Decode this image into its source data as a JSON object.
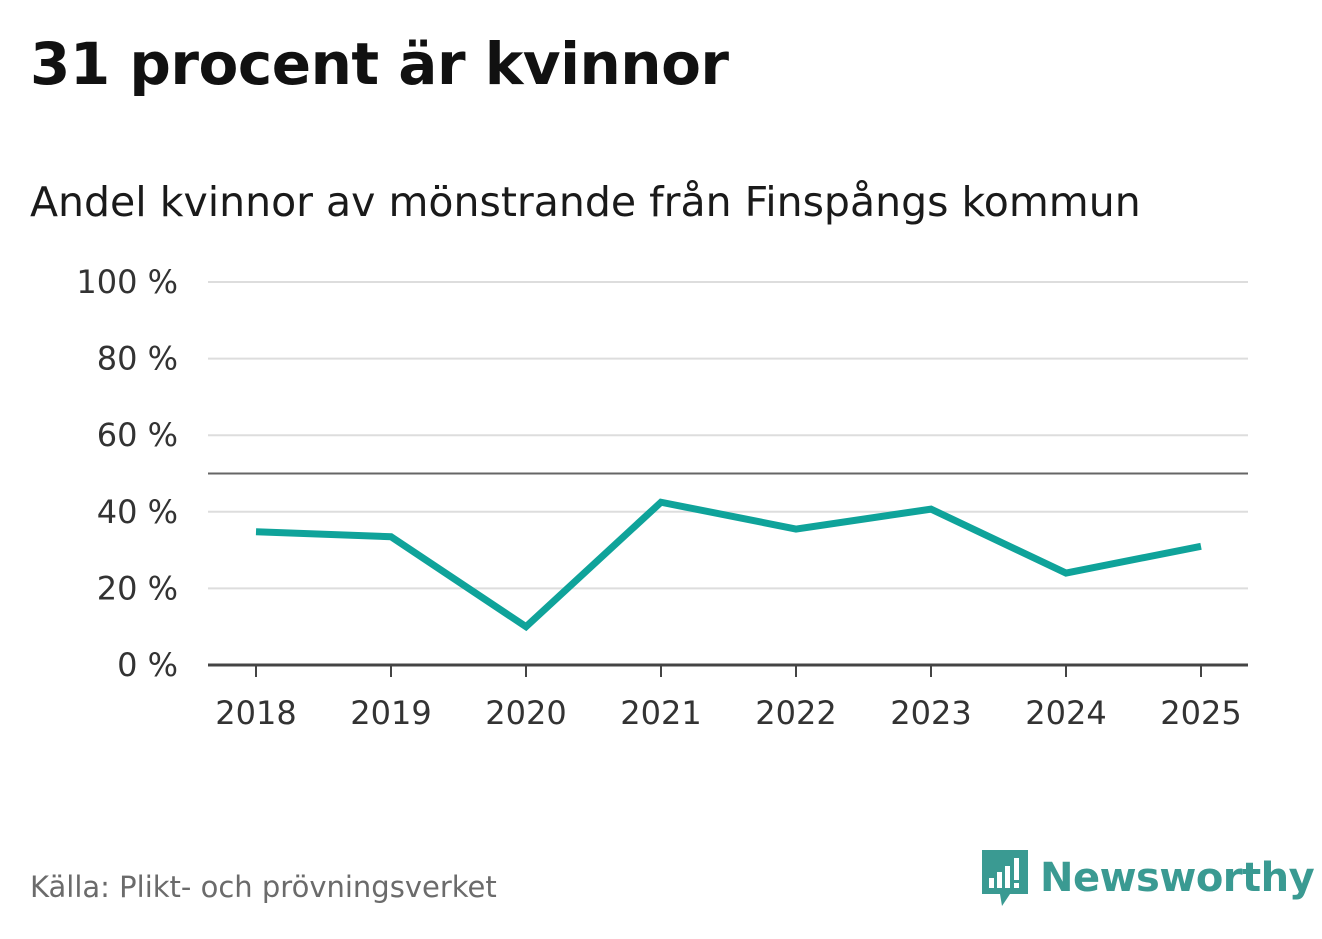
{
  "colors": {
    "line": "#0fa39a",
    "brand": "#3a9a92",
    "grid": "#dddddd",
    "axis": "#444444",
    "reference": "#666666"
  },
  "chart_data": {
    "type": "line",
    "title": "31 procent är kvinnor",
    "subtitle": "Andel kvinnor av mönstrande från Finspångs kommun",
    "categories": [
      "2018",
      "2019",
      "2020",
      "2021",
      "2022",
      "2023",
      "2024",
      "2025"
    ],
    "series": [
      {
        "name": "Andel kvinnor",
        "values": [
          34.8,
          33.5,
          10,
          42.5,
          35.5,
          40.7,
          24,
          31
        ]
      }
    ],
    "ylim": [
      0,
      100
    ],
    "yticks": [
      0,
      20,
      40,
      60,
      80,
      100
    ],
    "ytick_labels": [
      "0 %",
      "20 %",
      "40 %",
      "60 %",
      "80 %",
      "100 %"
    ],
    "reference_line": 50,
    "xlabel": "",
    "ylabel": "",
    "grid": true
  },
  "footer": {
    "source": "Källa: Plikt- och prövningsverket",
    "brand_name": "Newsworthy",
    "brand_icon": "newsworthy-logo-icon"
  }
}
